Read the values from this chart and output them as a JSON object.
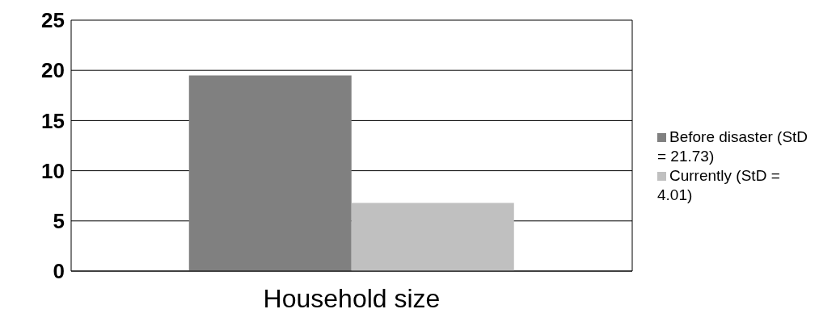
{
  "chart_data": {
    "type": "bar",
    "categories": [
      "Household size"
    ],
    "series": [
      {
        "name": "Before disaster (StD = 21.73)",
        "color": "#808080",
        "values": [
          19.5
        ]
      },
      {
        "name": "Currently (StD = 4.01)",
        "color": "#c0c0c0",
        "values": [
          6.8
        ]
      }
    ],
    "ylim": [
      0,
      25
    ],
    "yticks": [
      0,
      5,
      10,
      15,
      20,
      25
    ],
    "grid": "y",
    "legend": "right"
  }
}
